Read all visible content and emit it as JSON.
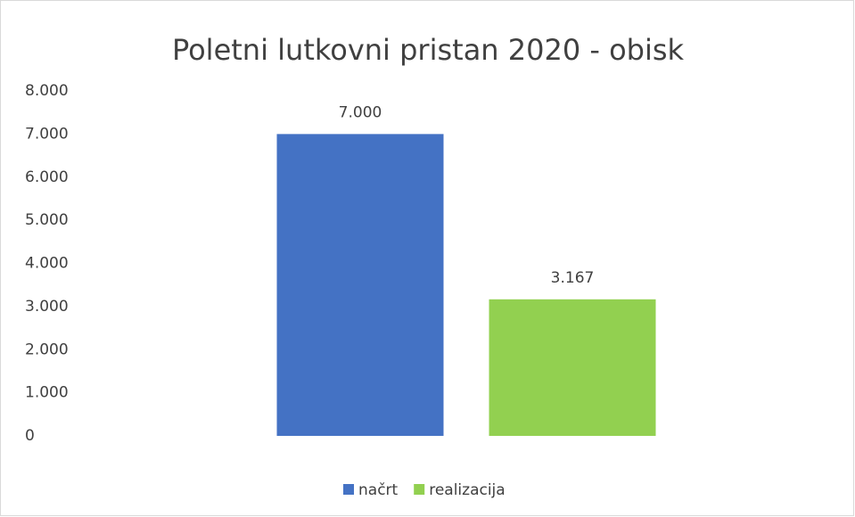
{
  "chart_data": {
    "type": "bar",
    "title": "Poletni lutkovni pristan 2020 - obisk",
    "categories": [
      null
    ],
    "series": [
      {
        "name": "načrt",
        "color": "#4472c4",
        "values": [
          7000
        ],
        "value_labels": [
          "7.000"
        ]
      },
      {
        "name": "realizacija",
        "color": "#92d050",
        "values": [
          3167
        ],
        "value_labels": [
          "3.167"
        ]
      }
    ],
    "ylim": [
      0,
      8000
    ],
    "yticks": [
      0,
      {
        "value": 1000,
        "label": "1.000"
      },
      {
        "value": 2000,
        "label": "2.000"
      },
      {
        "value": 3000,
        "label": "3.000"
      },
      {
        "value": 4000,
        "label": "4.000"
      },
      {
        "value": 5000,
        "label": "5.000"
      },
      {
        "value": 6000,
        "label": "6.000"
      },
      {
        "value": 7000,
        "label": "7.000"
      },
      {
        "value": 8000,
        "label": "8.000"
      }
    ],
    "grid": false,
    "legend": "bottom"
  }
}
